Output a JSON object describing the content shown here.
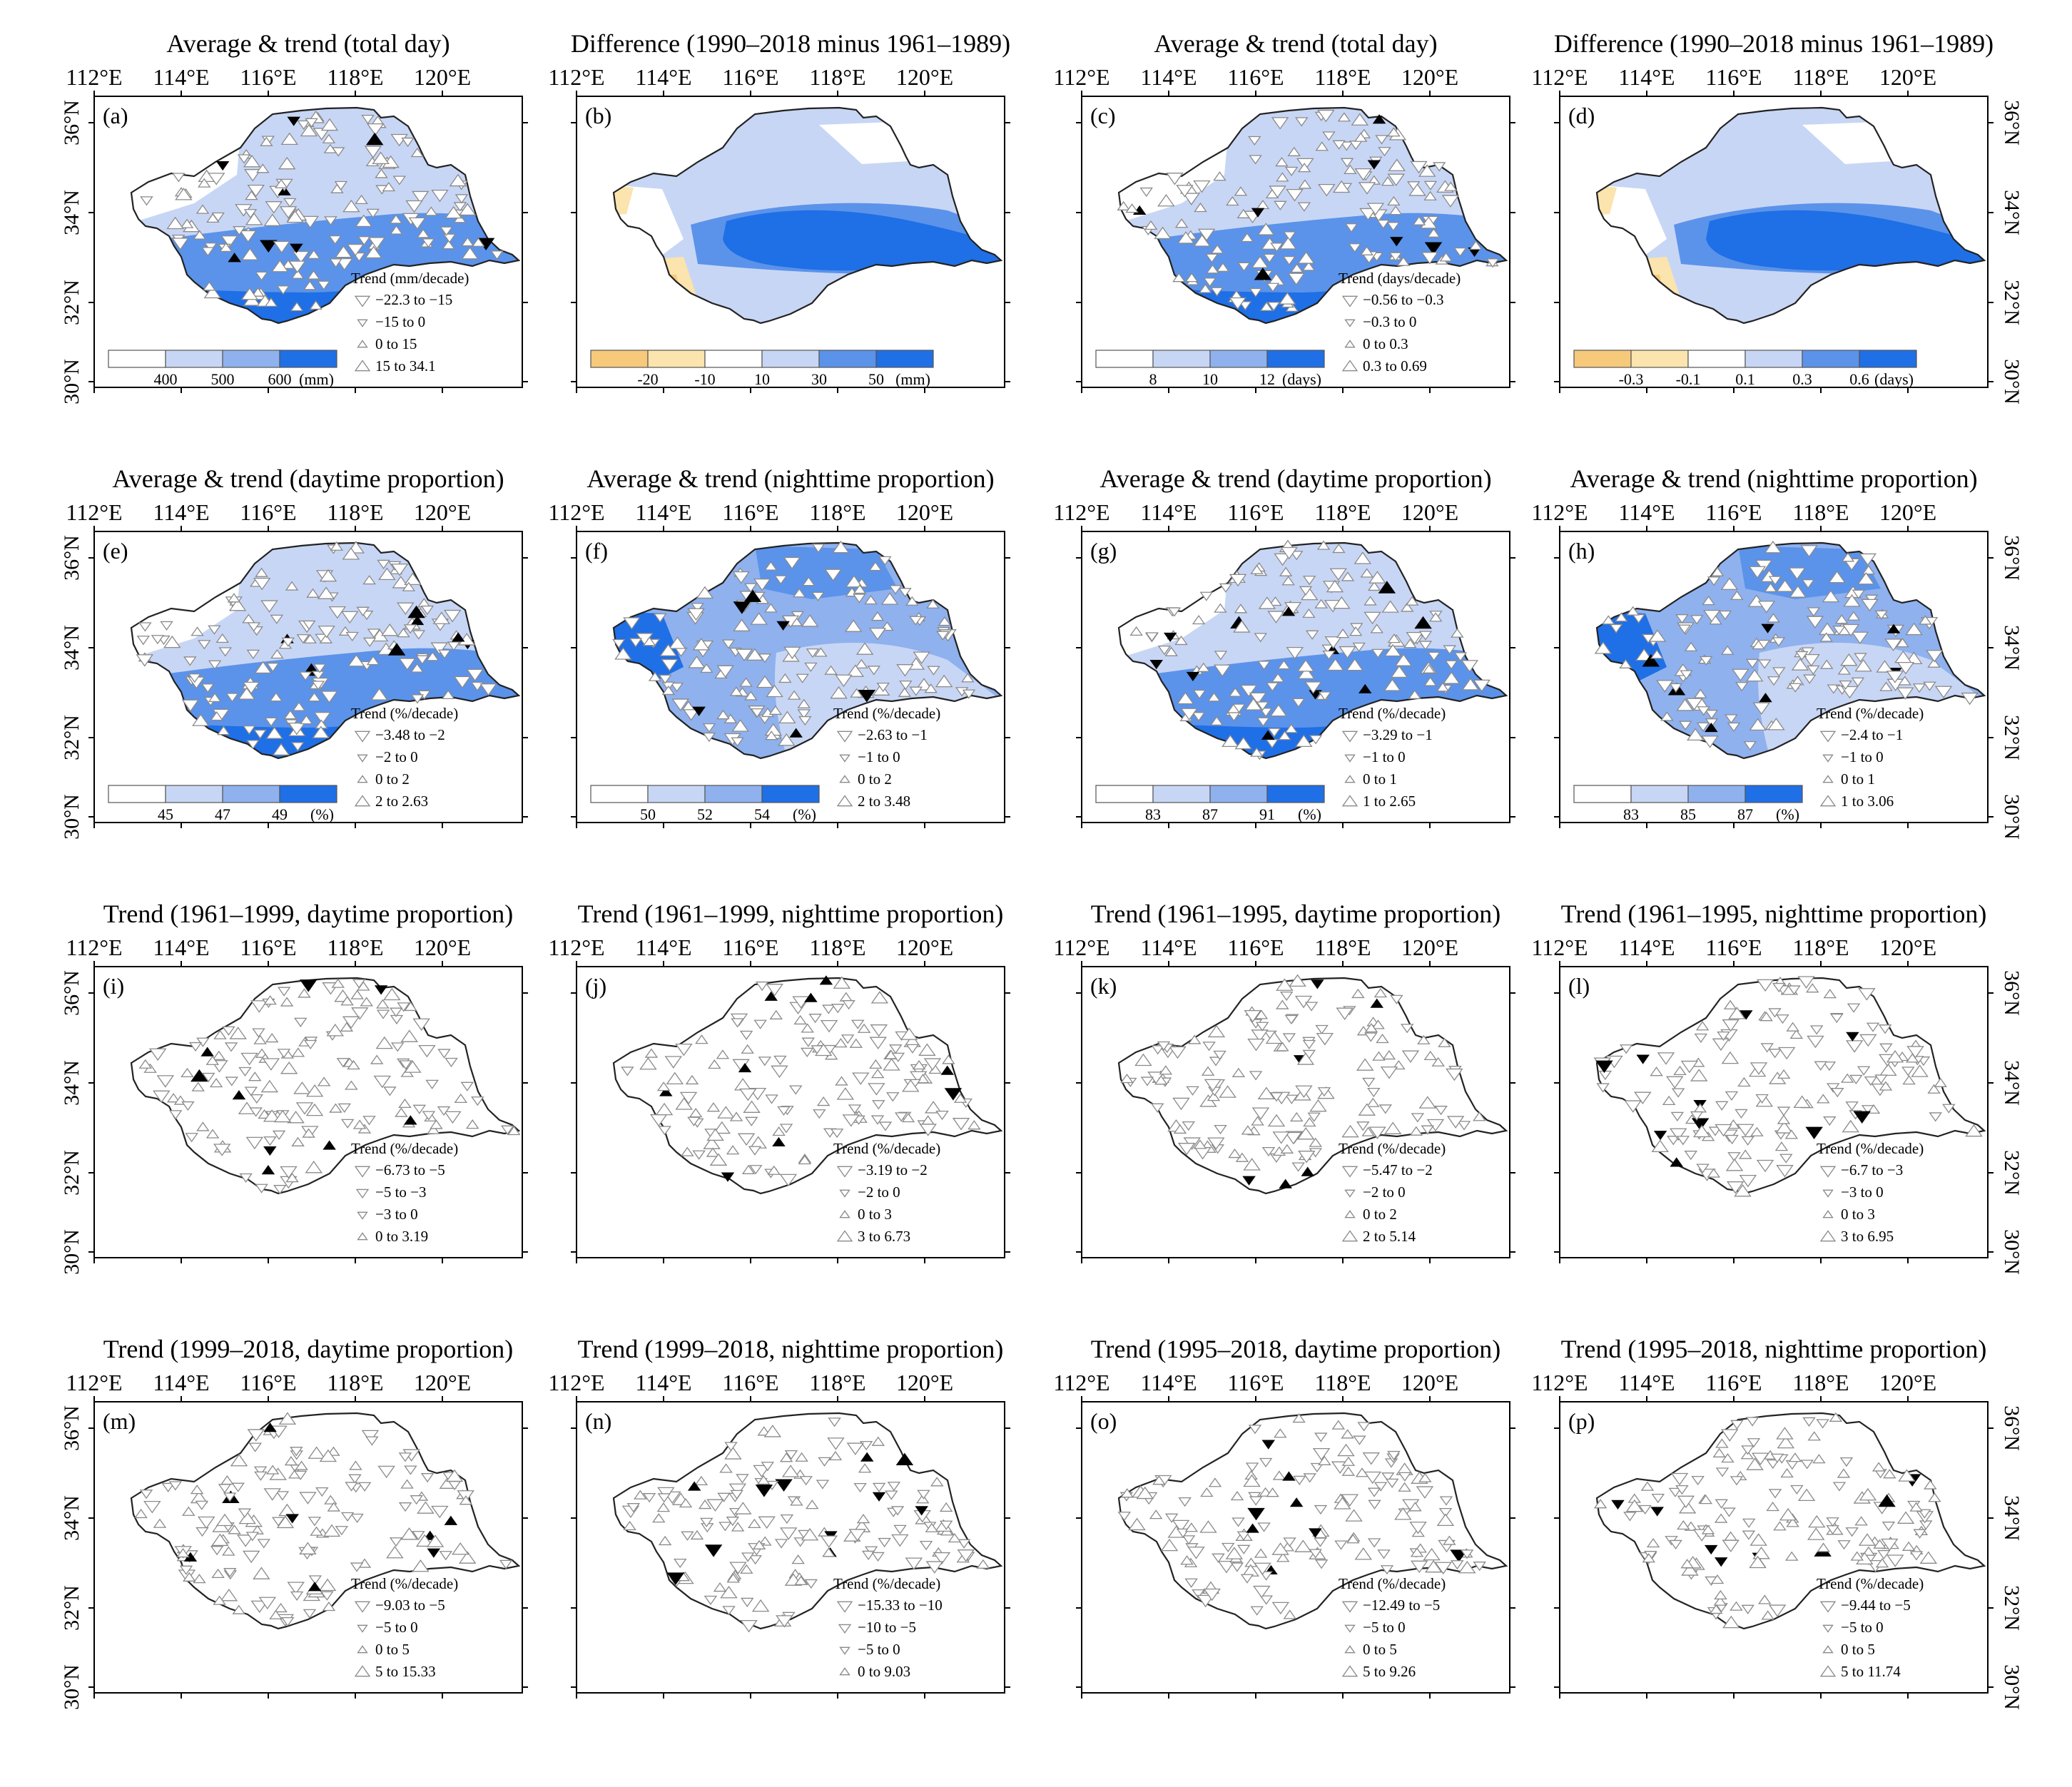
{
  "colors": {
    "blue": [
      "#c8d6f5",
      "#8fb1ee",
      "#5b93ea",
      "#1f6fe6"
    ],
    "yellow": [
      "#f7c97a",
      "#fbe4ad"
    ],
    "outline": "#222222",
    "marker_gray": "#8a8a8a",
    "marker_black": "#000000"
  },
  "axes": {
    "lon_labels": [
      "112°E",
      "114°E",
      "116°E",
      "118°E",
      "120°E"
    ],
    "lat_labels": [
      "36°N",
      "34°N",
      "32°N",
      "30°N"
    ]
  },
  "panels": [
    {
      "id": "a",
      "label": "(a)",
      "title": "Average & trend (total day)",
      "fill": "avg",
      "seed": 3,
      "legend": {
        "title": "Trend (mm/decade)",
        "entries": [
          {
            "sym": "down-large",
            "text": "−22.3 to −15"
          },
          {
            "sym": "down-small",
            "text": "−15 to 0"
          },
          {
            "sym": "up-small",
            "text": "0 to 15"
          },
          {
            "sym": "up-large",
            "text": "15 to 34.1"
          }
        ]
      },
      "colorbar": {
        "colors": [
          "#ffffff",
          "#c8d6f5",
          "#8fb1ee",
          "#1f6fe6"
        ],
        "labels": [
          "400",
          "500",
          "600"
        ],
        "unit": "(mm)"
      }
    },
    {
      "id": "b",
      "label": "(b)",
      "title": "Difference (1990–2018 minus 1961–1989)",
      "fill": "diff",
      "seed": 0,
      "colorbar": {
        "colors": [
          "#f7c97a",
          "#fbe4ad",
          "#ffffff",
          "#c8d6f5",
          "#5b93ea",
          "#1f6fe6"
        ],
        "labels": [
          "-20",
          "-10",
          "10",
          "30",
          "50"
        ],
        "unit": "(mm)"
      }
    },
    {
      "id": "c",
      "label": "(c)",
      "title": "Average & trend (total day)",
      "fill": "avg",
      "seed": 7,
      "legend": {
        "title": "Trend (days/decade)",
        "entries": [
          {
            "sym": "down-large",
            "text": "−0.56 to −0.3"
          },
          {
            "sym": "down-small",
            "text": "−0.3 to 0"
          },
          {
            "sym": "up-small",
            "text": "0 to 0.3"
          },
          {
            "sym": "up-large",
            "text": "0.3 to 0.69"
          }
        ]
      },
      "colorbar": {
        "colors": [
          "#ffffff",
          "#c8d6f5",
          "#8fb1ee",
          "#1f6fe6"
        ],
        "labels": [
          "8",
          "10",
          "12"
        ],
        "unit": "(days)"
      }
    },
    {
      "id": "d",
      "label": "(d)",
      "title": "Difference (1990–2018 minus 1961–1989)",
      "fill": "diff",
      "seed": 0,
      "colorbar": {
        "colors": [
          "#f7c97a",
          "#fbe4ad",
          "#ffffff",
          "#c8d6f5",
          "#5b93ea",
          "#1f6fe6"
        ],
        "labels": [
          "-0.3",
          "-0.1",
          "0.1",
          "0.3",
          "0.6"
        ],
        "unit": "(days)"
      }
    },
    {
      "id": "e",
      "label": "(e)",
      "title": "Average & trend (daytime proportion)",
      "fill": "avg",
      "seed": 11,
      "legend": {
        "title": "Trend (%/decade)",
        "entries": [
          {
            "sym": "down-large",
            "text": "−3.48 to −2"
          },
          {
            "sym": "down-small",
            "text": "−2 to 0"
          },
          {
            "sym": "up-small",
            "text": "0 to 2"
          },
          {
            "sym": "up-large",
            "text": "2 to 2.63"
          }
        ]
      },
      "colorbar": {
        "colors": [
          "#ffffff",
          "#c8d6f5",
          "#8fb1ee",
          "#1f6fe6"
        ],
        "labels": [
          "45",
          "47",
          "49"
        ],
        "unit": "(%)"
      }
    },
    {
      "id": "f",
      "label": "(f)",
      "title": "Average & trend (nighttime proportion)",
      "fill": "night",
      "seed": 13,
      "legend": {
        "title": "Trend (%/decade)",
        "entries": [
          {
            "sym": "down-large",
            "text": "−2.63 to −1"
          },
          {
            "sym": "down-small",
            "text": "−1 to 0"
          },
          {
            "sym": "up-small",
            "text": "0 to 2"
          },
          {
            "sym": "up-large",
            "text": "2 to 3.48"
          }
        ]
      },
      "colorbar": {
        "colors": [
          "#ffffff",
          "#c8d6f5",
          "#8fb1ee",
          "#1f6fe6"
        ],
        "labels": [
          "50",
          "52",
          "54"
        ],
        "unit": "(%)"
      }
    },
    {
      "id": "g",
      "label": "(g)",
      "title": "Average & trend (daytime proportion)",
      "fill": "avg",
      "seed": 17,
      "legend": {
        "title": "Trend (%/decade)",
        "entries": [
          {
            "sym": "down-large",
            "text": "−3.29 to −1"
          },
          {
            "sym": "down-small",
            "text": "−1 to 0"
          },
          {
            "sym": "up-small",
            "text": "0 to 1"
          },
          {
            "sym": "up-large",
            "text": "1 to 2.65"
          }
        ]
      },
      "colorbar": {
        "colors": [
          "#ffffff",
          "#c8d6f5",
          "#8fb1ee",
          "#1f6fe6"
        ],
        "labels": [
          "83",
          "87",
          "91"
        ],
        "unit": "(%)"
      }
    },
    {
      "id": "h",
      "label": "(h)",
      "title": "Average & trend (nighttime proportion)",
      "fill": "night",
      "seed": 19,
      "legend": {
        "title": "Trend (%/decade)",
        "entries": [
          {
            "sym": "down-large",
            "text": "−2.4 to −1"
          },
          {
            "sym": "down-small",
            "text": "−1 to 0"
          },
          {
            "sym": "up-small",
            "text": "0 to 1"
          },
          {
            "sym": "up-large",
            "text": "1 to 3.06"
          }
        ]
      },
      "colorbar": {
        "colors": [
          "#ffffff",
          "#c8d6f5",
          "#8fb1ee",
          "#1f6fe6"
        ],
        "labels": [
          "83",
          "85",
          "87"
        ],
        "unit": "(%)"
      }
    },
    {
      "id": "i",
      "label": "(i)",
      "title": "Trend (1961–1999, daytime proportion)",
      "fill": "none",
      "seed": 23,
      "legend": {
        "title": "Trend (%/decade)",
        "entries": [
          {
            "sym": "down-large",
            "text": "−6.73 to −5"
          },
          {
            "sym": "down-mid",
            "text": "−5 to −3"
          },
          {
            "sym": "down-small",
            "text": "−3 to 0"
          },
          {
            "sym": "up-small",
            "text": "0 to 3.19"
          }
        ]
      }
    },
    {
      "id": "j",
      "label": "(j)",
      "title": "Trend (1961–1999, nighttime proportion)",
      "fill": "none",
      "seed": 29,
      "legend": {
        "title": "Trend (%/decade)",
        "entries": [
          {
            "sym": "down-large",
            "text": "−3.19 to −2"
          },
          {
            "sym": "down-small",
            "text": "−2 to 0"
          },
          {
            "sym": "up-small",
            "text": "0 to 3"
          },
          {
            "sym": "up-large",
            "text": "3 to 6.73"
          }
        ]
      }
    },
    {
      "id": "k",
      "label": "(k)",
      "title": "Trend (1961–1995, daytime proportion)",
      "fill": "none",
      "seed": 31,
      "legend": {
        "title": "Trend (%/decade)",
        "entries": [
          {
            "sym": "down-large",
            "text": "−5.47 to −2"
          },
          {
            "sym": "down-small",
            "text": "−2 to 0"
          },
          {
            "sym": "up-small",
            "text": "0 to 2"
          },
          {
            "sym": "up-large",
            "text": "2 to 5.14"
          }
        ]
      }
    },
    {
      "id": "l",
      "label": "(l)",
      "title": "Trend (1961–1995, nighttime proportion)",
      "fill": "none",
      "seed": 37,
      "legend": {
        "title": "Trend (%/decade)",
        "entries": [
          {
            "sym": "down-large",
            "text": "−6.7 to −3"
          },
          {
            "sym": "down-small",
            "text": "−3 to 0"
          },
          {
            "sym": "up-small",
            "text": "0 to 3"
          },
          {
            "sym": "up-large",
            "text": "3 to 6.95"
          }
        ]
      }
    },
    {
      "id": "m",
      "label": "(m)",
      "title": "Trend (1999–2018, daytime proportion)",
      "fill": "none",
      "seed": 41,
      "legend": {
        "title": "Trend (%/decade)",
        "entries": [
          {
            "sym": "down-large",
            "text": "−9.03 to −5"
          },
          {
            "sym": "down-small",
            "text": "−5 to 0"
          },
          {
            "sym": "up-small",
            "text": "0 to 5"
          },
          {
            "sym": "up-large",
            "text": "5 to 15.33"
          }
        ]
      }
    },
    {
      "id": "n",
      "label": "(n)",
      "title": "Trend (1999–2018, nighttime proportion)",
      "fill": "none",
      "seed": 43,
      "legend": {
        "title": "Trend (%/decade)",
        "entries": [
          {
            "sym": "down-large",
            "text": "−15.33 to −10"
          },
          {
            "sym": "down-mid",
            "text": "−10 to −5"
          },
          {
            "sym": "down-small",
            "text": "−5 to 0"
          },
          {
            "sym": "up-small",
            "text": "0 to 9.03"
          }
        ]
      }
    },
    {
      "id": "o",
      "label": "(o)",
      "title": "Trend (1995–2018, daytime proportion)",
      "fill": "none",
      "seed": 47,
      "legend": {
        "title": "Trend (%/decade)",
        "entries": [
          {
            "sym": "down-large",
            "text": "−12.49 to −5"
          },
          {
            "sym": "down-small",
            "text": "−5 to 0"
          },
          {
            "sym": "up-small",
            "text": "0 to 5"
          },
          {
            "sym": "up-large",
            "text": "5 to 9.26"
          }
        ]
      }
    },
    {
      "id": "p",
      "label": "(p)",
      "title": "Trend (1995–2018, nighttime proportion)",
      "fill": "none",
      "seed": 53,
      "legend": {
        "title": "Trend (%/decade)",
        "entries": [
          {
            "sym": "down-large",
            "text": "−9.44 to −5"
          },
          {
            "sym": "down-small",
            "text": "−5 to 0"
          },
          {
            "sym": "up-small",
            "text": "0 to 5"
          },
          {
            "sym": "up-large",
            "text": "5 to 11.74"
          }
        ]
      }
    }
  ]
}
